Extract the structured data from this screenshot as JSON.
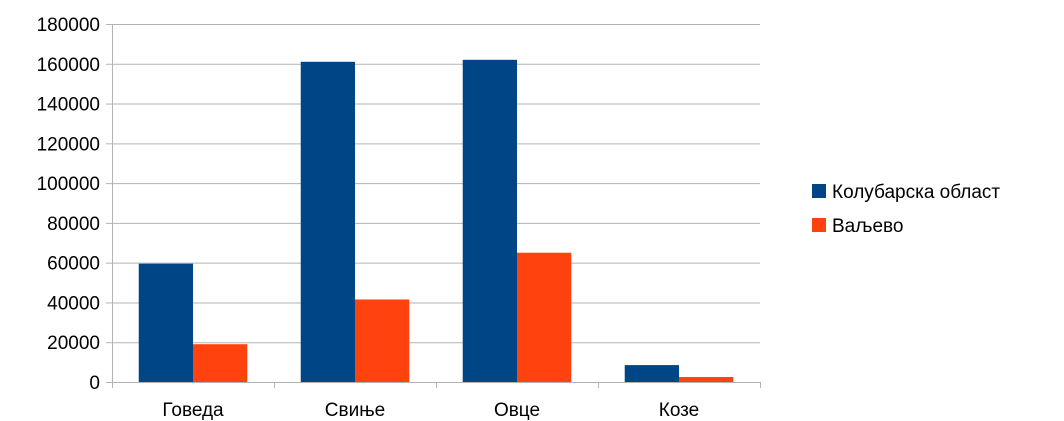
{
  "chart_data": {
    "type": "bar",
    "title": "",
    "xlabel": "",
    "ylabel": "",
    "categories": [
      "Говеда",
      "Свиње",
      "Овце",
      "Козе"
    ],
    "series": [
      {
        "name": "Колубарска област",
        "values": [
          59500,
          161000,
          162000,
          8500
        ],
        "color": "#004586"
      },
      {
        "name": "Ваљево",
        "values": [
          19000,
          41500,
          65000,
          2500
        ],
        "color": "#ff420e"
      }
    ],
    "ylim": [
      0,
      180000
    ],
    "yticks": [
      0,
      20000,
      40000,
      60000,
      80000,
      100000,
      120000,
      140000,
      160000,
      180000
    ],
    "grid": true,
    "grid_color": "#b3b3b3",
    "legend_position": "right"
  }
}
